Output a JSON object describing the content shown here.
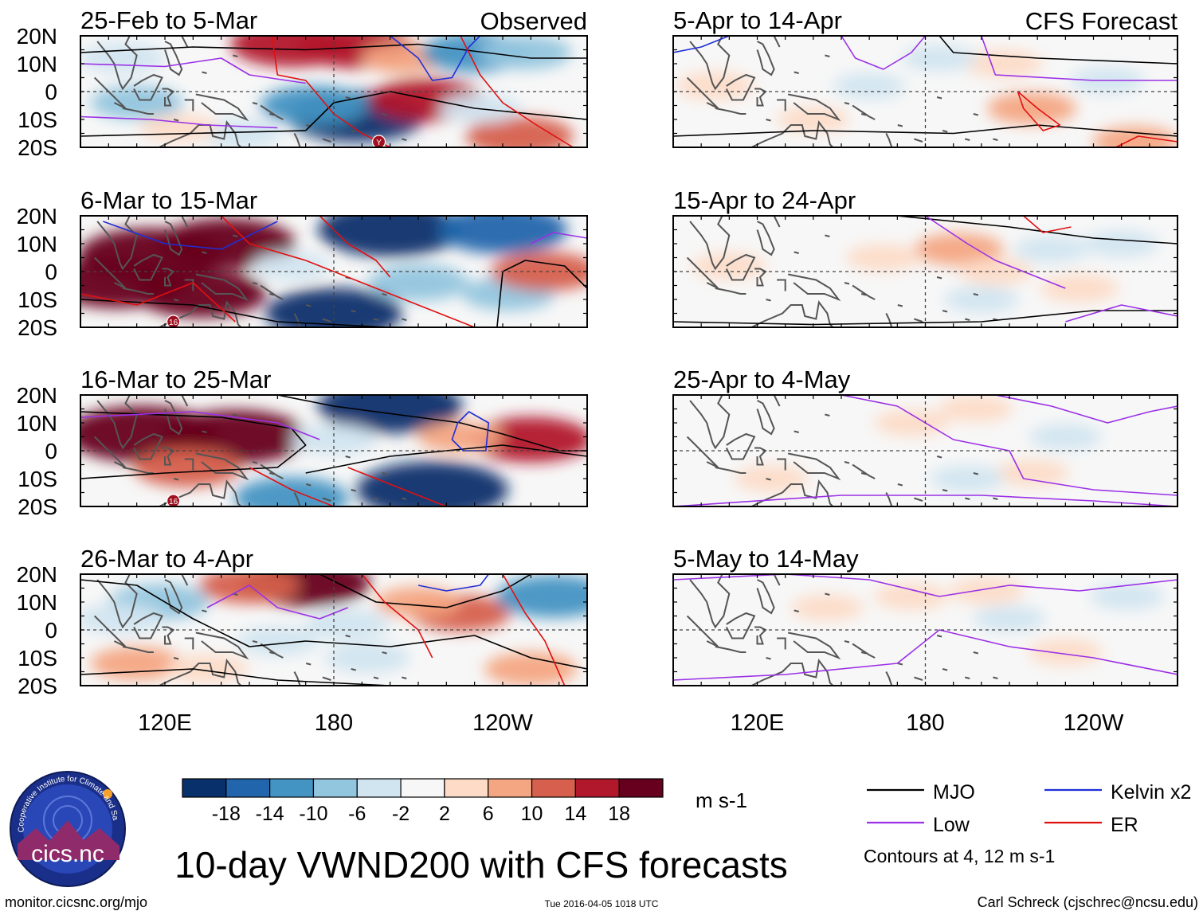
{
  "chart_data": {
    "type": "heatmap",
    "title": "10-day VWND200 with CFS forecasts",
    "variable": "VWND200",
    "units": "m s-1",
    "column_titles": [
      "Observed",
      "CFS Forecast"
    ],
    "lat_ticks": [
      "20N",
      "10N",
      "0",
      "10S",
      "20S"
    ],
    "lon_ticks": [
      "120E",
      "180",
      "120W"
    ],
    "colorbar": {
      "ticks": [
        "-18",
        "-14",
        "-10",
        "-6",
        "-2",
        "2",
        "6",
        "10",
        "14",
        "18"
      ],
      "colors": [
        "#08306b",
        "#2166ac",
        "#4393c3",
        "#92c5de",
        "#d1e5f0",
        "#f7f7f7",
        "#fddbc7",
        "#f4a582",
        "#d6604d",
        "#b2182b",
        "#67001f"
      ]
    },
    "legend": {
      "entries": [
        {
          "name": "MJO",
          "color": "#000000"
        },
        {
          "name": "Kelvin x2",
          "color": "#1e2fd6"
        },
        {
          "name": "Low",
          "color": "#9b30e6"
        },
        {
          "name": "ER",
          "color": "#e01010"
        }
      ],
      "note": "Contours at 4, 12 m s-1"
    },
    "observed_panels": [
      {
        "period": "25-Feb to 5-Mar",
        "storm_marker": "Y",
        "anomalies": [
          {
            "lon": 165,
            "lat": 17,
            "value": 16
          },
          {
            "lon": 188,
            "lat": 16,
            "value": 14
          },
          {
            "lon": 205,
            "lat": 12,
            "value": 6
          },
          {
            "lon": 230,
            "lat": 14,
            "value": -12
          },
          {
            "lon": 248,
            "lat": 14,
            "value": -8
          },
          {
            "lon": 105,
            "lat": 12,
            "value": -6
          },
          {
            "lon": 110,
            "lat": -4,
            "value": -8
          },
          {
            "lon": 188,
            "lat": -9,
            "value": -20
          },
          {
            "lon": 173,
            "lat": -5,
            "value": -12
          },
          {
            "lon": 213,
            "lat": -3,
            "value": 14
          },
          {
            "lon": 246,
            "lat": -16,
            "value": 12
          },
          {
            "lon": 232,
            "lat": -6,
            "value": -5
          },
          {
            "lon": 147,
            "lat": -15,
            "value": -5
          },
          {
            "lon": 125,
            "lat": -13,
            "value": 4
          }
        ]
      },
      {
        "period": "6-Mar to 15-Mar",
        "storm_marker": "16",
        "anomalies": [
          {
            "lon": 115,
            "lat": 6,
            "value": 22
          },
          {
            "lon": 142,
            "lat": 10,
            "value": 20
          },
          {
            "lon": 133,
            "lat": -8,
            "value": 18
          },
          {
            "lon": 103,
            "lat": -4,
            "value": 20
          },
          {
            "lon": 200,
            "lat": 15,
            "value": -22
          },
          {
            "lon": 240,
            "lat": 15,
            "value": -18
          },
          {
            "lon": 180,
            "lat": -15,
            "value": -20
          },
          {
            "lon": 210,
            "lat": -4,
            "value": -10
          },
          {
            "lon": 242,
            "lat": -8,
            "value": -8
          },
          {
            "lon": 255,
            "lat": 0,
            "value": 12
          },
          {
            "lon": 165,
            "lat": 2,
            "value": -4
          }
        ]
      },
      {
        "period": "16-Mar to 25-Mar",
        "storm_marker": "16",
        "anomalies": [
          {
            "lon": 112,
            "lat": 6,
            "value": 24
          },
          {
            "lon": 145,
            "lat": 5,
            "value": 22
          },
          {
            "lon": 128,
            "lat": -6,
            "value": 12
          },
          {
            "lon": 200,
            "lat": 16,
            "value": -22
          },
          {
            "lon": 215,
            "lat": -14,
            "value": -24
          },
          {
            "lon": 165,
            "lat": -17,
            "value": -14
          },
          {
            "lon": 250,
            "lat": 4,
            "value": 16
          },
          {
            "lon": 225,
            "lat": 5,
            "value": 6
          },
          {
            "lon": 180,
            "lat": 4,
            "value": -6
          }
        ]
      },
      {
        "period": "26-Mar to 4-Apr",
        "anomalies": [
          {
            "lon": 170,
            "lat": 17,
            "value": 18
          },
          {
            "lon": 150,
            "lat": 16,
            "value": 10
          },
          {
            "lon": 225,
            "lat": 6,
            "value": 10
          },
          {
            "lon": 210,
            "lat": 10,
            "value": 6
          },
          {
            "lon": 118,
            "lat": 10,
            "value": -10
          },
          {
            "lon": 104,
            "lat": 4,
            "value": -6
          },
          {
            "lon": 258,
            "lat": 12,
            "value": -14
          },
          {
            "lon": 185,
            "lat": 2,
            "value": -6
          },
          {
            "lon": 160,
            "lat": -4,
            "value": -5
          },
          {
            "lon": 192,
            "lat": -10,
            "value": -6
          },
          {
            "lon": 110,
            "lat": -12,
            "value": 8
          },
          {
            "lon": 250,
            "lat": -14,
            "value": 8
          },
          {
            "lon": 135,
            "lat": -14,
            "value": 5
          }
        ]
      }
    ],
    "forecast_panels": [
      {
        "period": "5-Apr to 14-Apr",
        "anomalies": [
          {
            "lon": 105,
            "lat": 2,
            "value": 4
          },
          {
            "lon": 140,
            "lat": -10,
            "value": 2.5
          },
          {
            "lon": 218,
            "lat": -6,
            "value": 7
          },
          {
            "lon": 208,
            "lat": 10,
            "value": 4
          },
          {
            "lon": 185,
            "lat": 12,
            "value": -3
          },
          {
            "lon": 245,
            "lat": 4,
            "value": -3
          },
          {
            "lon": 255,
            "lat": -18,
            "value": 6
          },
          {
            "lon": 160,
            "lat": 2,
            "value": -2.5
          }
        ]
      },
      {
        "period": "15-Apr to 24-Apr",
        "anomalies": [
          {
            "lon": 192,
            "lat": 8,
            "value": 7
          },
          {
            "lon": 205,
            "lat": 0,
            "value": 3
          },
          {
            "lon": 110,
            "lat": 2,
            "value": 3
          },
          {
            "lon": 165,
            "lat": 5,
            "value": 3
          },
          {
            "lon": 200,
            "lat": -10,
            "value": -3
          },
          {
            "lon": 225,
            "lat": 8,
            "value": -3
          },
          {
            "lon": 235,
            "lat": -6,
            "value": 4
          },
          {
            "lon": 250,
            "lat": 10,
            "value": -3
          }
        ]
      },
      {
        "period": "25-Apr to 4-May",
        "anomalies": [
          {
            "lon": 125,
            "lat": -10,
            "value": 3
          },
          {
            "lon": 175,
            "lat": 10,
            "value": 3
          },
          {
            "lon": 198,
            "lat": 15,
            "value": 3
          },
          {
            "lon": 218,
            "lat": -8,
            "value": 3
          },
          {
            "lon": 195,
            "lat": -10,
            "value": -3
          },
          {
            "lon": 230,
            "lat": 5,
            "value": -2.5
          }
        ]
      },
      {
        "period": "5-May to 14-May",
        "anomalies": [
          {
            "lon": 175,
            "lat": 12,
            "value": 3
          },
          {
            "lon": 202,
            "lat": 14,
            "value": 3
          },
          {
            "lon": 230,
            "lat": -8,
            "value": 3
          },
          {
            "lon": 145,
            "lat": 8,
            "value": 2.5
          },
          {
            "lon": 210,
            "lat": 4,
            "value": -2.5
          },
          {
            "lon": 252,
            "lat": 12,
            "value": -3
          }
        ]
      }
    ]
  },
  "footer": {
    "url": "monitor.cicsnc.org/mjo",
    "timestamp": "Tue 2016-04-05 1018 UTC",
    "author": "Carl Schreck (cjschrec@ncsu.edu)",
    "logo_text": "cics.nc",
    "logo_ring_text": "Cooperative Institute for Climate and Satellites"
  }
}
